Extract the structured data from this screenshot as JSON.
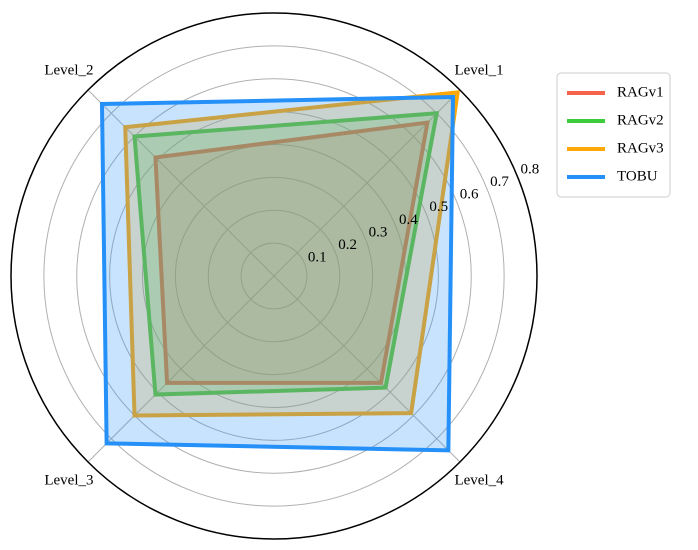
{
  "chart_data": {
    "type": "radar",
    "categories": [
      "Level_1",
      "Level_2",
      "Level_3",
      "Level_4"
    ],
    "series": [
      {
        "name": "RAGv1",
        "color": "#f4634a",
        "values": [
          0.66,
          0.51,
          0.46,
          0.46
        ]
      },
      {
        "name": "RAGv2",
        "color": "#3ccc3c",
        "values": [
          0.7,
          0.6,
          0.51,
          0.48
        ]
      },
      {
        "name": "RAGv3",
        "color": "#ffa808",
        "values": [
          0.79,
          0.64,
          0.6,
          0.59
        ]
      },
      {
        "name": "TOBU",
        "color": "#2490f8",
        "values": [
          0.77,
          0.74,
          0.72,
          0.75
        ]
      }
    ],
    "ylim": [
      0,
      0.8
    ],
    "yticks": [
      0.1,
      0.2,
      0.3,
      0.4,
      0.5,
      0.6,
      0.7,
      0.8
    ],
    "grid": true,
    "legend": "upper right"
  }
}
